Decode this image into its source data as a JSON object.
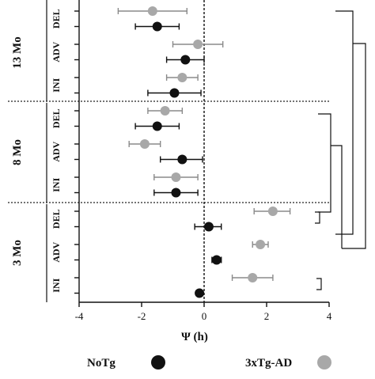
{
  "chart_data": {
    "type": "scatter",
    "subtype": "forest-plot",
    "xlabel": "Ψ (h)",
    "xlim": [
      -4,
      4
    ],
    "xticks": [
      -4,
      -2,
      0,
      2,
      4
    ],
    "reference_line": 0,
    "colors": {
      "NoTg": "#111111",
      "3xTg-AD": "#a8a8a8"
    },
    "series": [
      {
        "name": "NoTg",
        "color_key": "NoTg"
      },
      {
        "name": "3xTg-AD",
        "color_key": "3xTg-AD"
      }
    ],
    "groups": [
      {
        "label": "13 Mo",
        "rows": [
          {
            "label": "DEL",
            "points": [
              {
                "series": "3xTg-AD",
                "x": -1.65,
                "lo": -2.75,
                "hi": -0.55
              },
              {
                "series": "NoTg",
                "x": -1.5,
                "lo": -2.2,
                "hi": -0.8
              }
            ]
          },
          {
            "label": "ADV",
            "points": [
              {
                "series": "3xTg-AD",
                "x": -0.2,
                "lo": -1.0,
                "hi": 0.6
              },
              {
                "series": "NoTg",
                "x": -0.6,
                "lo": -1.2,
                "hi": 0.0
              }
            ]
          },
          {
            "label": "INI",
            "points": [
              {
                "series": "3xTg-AD",
                "x": -0.7,
                "lo": -1.2,
                "hi": -0.2
              },
              {
                "series": "NoTg",
                "x": -0.95,
                "lo": -1.8,
                "hi": -0.1
              }
            ]
          }
        ]
      },
      {
        "label": "8 Mo",
        "rows": [
          {
            "label": "DEL",
            "points": [
              {
                "series": "3xTg-AD",
                "x": -1.25,
                "lo": -1.8,
                "hi": -0.7
              },
              {
                "series": "NoTg",
                "x": -1.5,
                "lo": -2.2,
                "hi": -0.8
              }
            ]
          },
          {
            "label": "ADV",
            "points": [
              {
                "series": "3xTg-AD",
                "x": -1.9,
                "lo": -2.4,
                "hi": -1.4
              },
              {
                "series": "NoTg",
                "x": -0.7,
                "lo": -1.4,
                "hi": -0.05
              }
            ]
          },
          {
            "label": "INI",
            "points": [
              {
                "series": "3xTg-AD",
                "x": -0.9,
                "lo": -1.6,
                "hi": -0.2
              },
              {
                "series": "NoTg",
                "x": -0.9,
                "lo": -1.6,
                "hi": -0.2
              }
            ]
          }
        ]
      },
      {
        "label": "3 Mo",
        "rows": [
          {
            "label": "DEL",
            "points": [
              {
                "series": "3xTg-AD",
                "x": 2.2,
                "lo": 1.6,
                "hi": 2.75
              },
              {
                "series": "NoTg",
                "x": 0.15,
                "lo": -0.3,
                "hi": 0.55
              }
            ]
          },
          {
            "label": "ADV",
            "points": [
              {
                "series": "3xTg-AD",
                "x": 1.8,
                "lo": 1.55,
                "hi": 2.05
              },
              {
                "series": "NoTg",
                "x": 0.4,
                "lo": 0.25,
                "hi": 0.55
              }
            ]
          },
          {
            "label": "INI",
            "points": [
              {
                "series": "3xTg-AD",
                "x": 1.55,
                "lo": 0.9,
                "hi": 2.2
              },
              {
                "series": "NoTg",
                "x": -0.15,
                "lo": -0.15,
                "hi": -0.15
              }
            ]
          }
        ]
      }
    ],
    "legend": {
      "placement": "bottom",
      "entries": [
        {
          "label": "NoTg",
          "color_key": "NoTg"
        },
        {
          "label": "3xTg-AD",
          "color_key": "3xTg-AD"
        }
      ]
    }
  }
}
